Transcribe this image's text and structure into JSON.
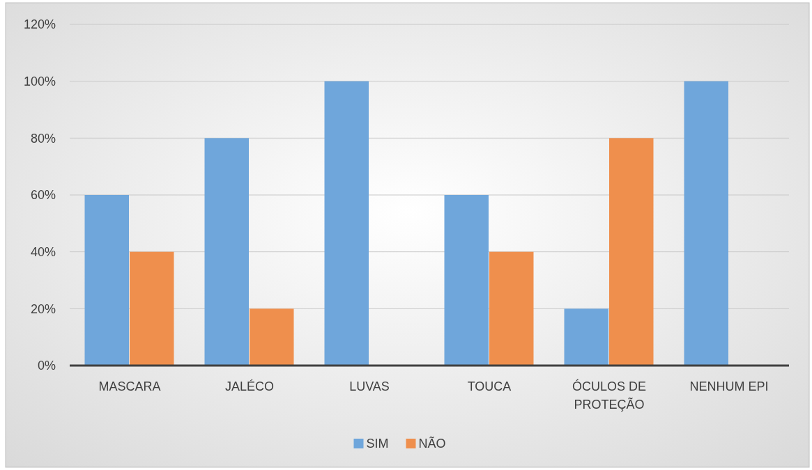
{
  "chart_data": {
    "type": "bar",
    "categories": [
      "MASCARA",
      "JALÉCO",
      "LUVAS",
      "TOUCA",
      "ÓCULOS DE PROTEÇÃO",
      "NENHUM EPI"
    ],
    "series": [
      {
        "name": "SIM",
        "color": "#6fa6db",
        "values": [
          60,
          80,
          100,
          60,
          20,
          100
        ]
      },
      {
        "name": "NÃO",
        "color": "#ef8f4d",
        "values": [
          40,
          20,
          0,
          40,
          80,
          0
        ]
      }
    ],
    "ylim": [
      0,
      120
    ],
    "yticks": [
      {
        "value": 0,
        "label": "0%"
      },
      {
        "value": 20,
        "label": "20%"
      },
      {
        "value": 40,
        "label": "40%"
      },
      {
        "value": 60,
        "label": "60%"
      },
      {
        "value": 80,
        "label": "80%"
      },
      {
        "value": 100,
        "label": "100%"
      },
      {
        "value": 120,
        "label": "120%"
      }
    ],
    "grid": "y",
    "legend": "bottom"
  }
}
